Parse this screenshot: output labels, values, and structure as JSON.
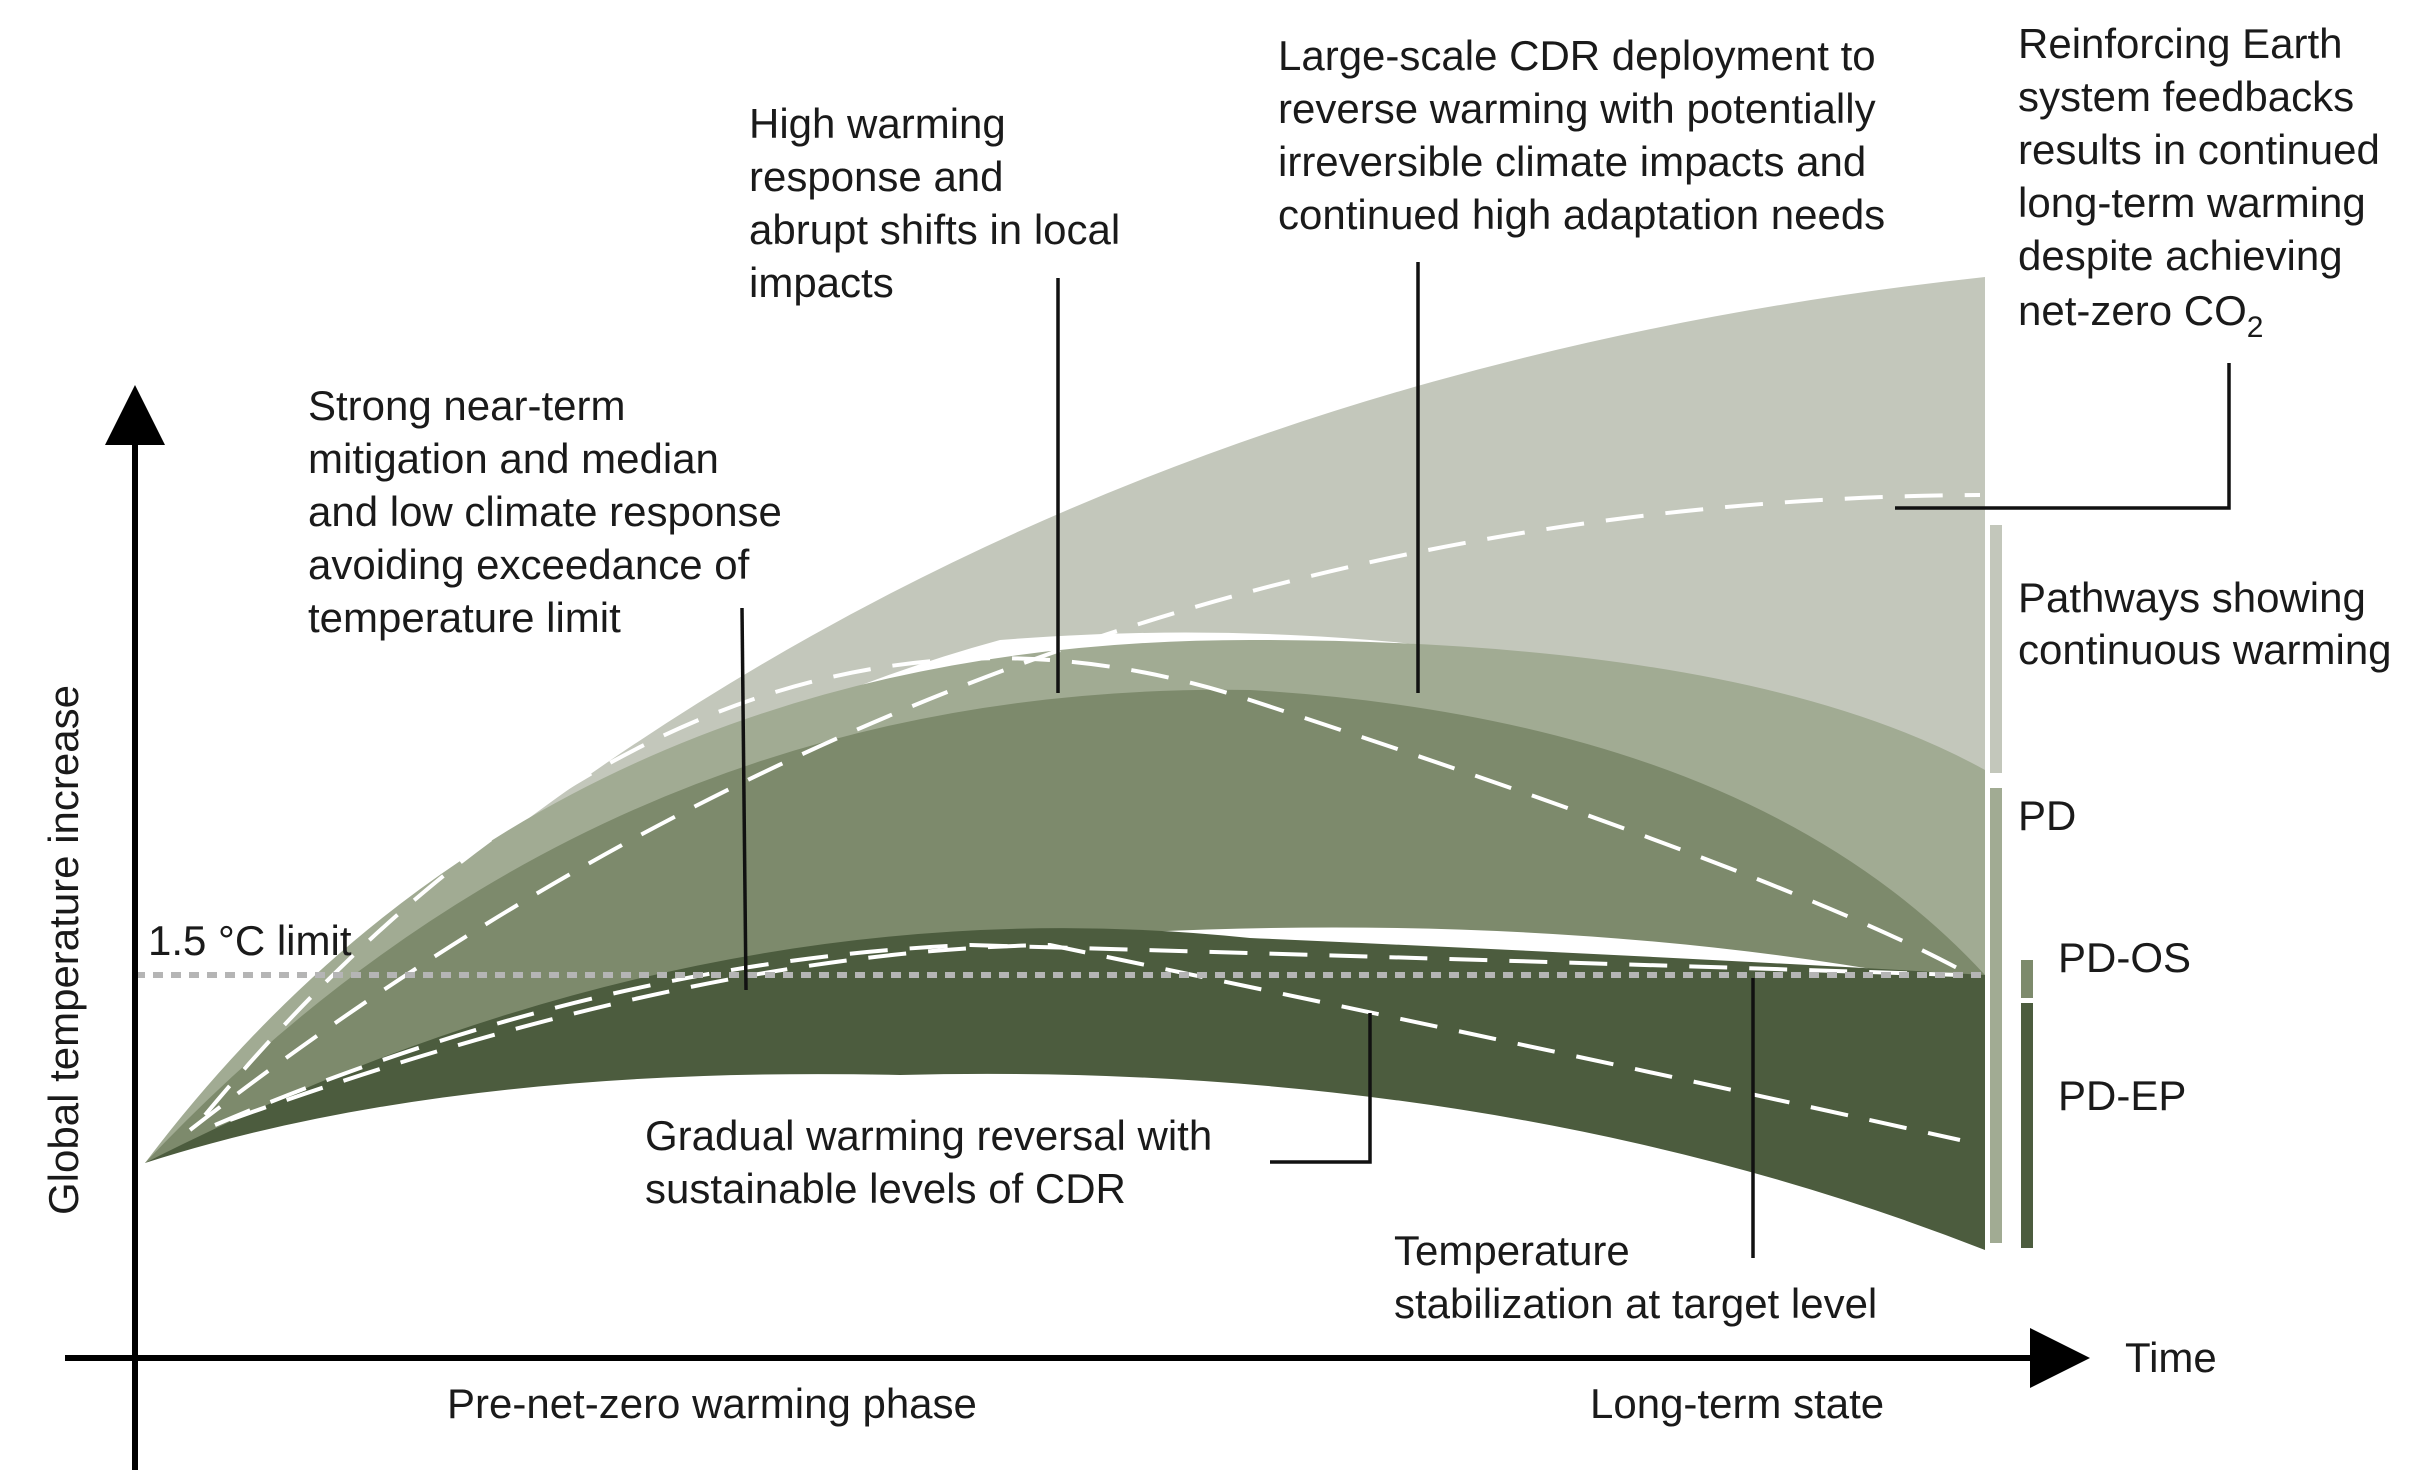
{
  "axes": {
    "y_label": "Global temperature increase",
    "x_label": "Time",
    "x_phase_left": "Pre-net-zero warming phase",
    "x_phase_right": "Long-term state"
  },
  "limit": {
    "label": "1.5 °C limit"
  },
  "annotations": {
    "strong_mitigation": [
      "Strong near-term",
      "mitigation and median",
      "and low climate response",
      "avoiding exceedance of",
      "temperature limit"
    ],
    "high_warming": [
      "High warming",
      "response and",
      "abrupt shifts in local",
      "impacts"
    ],
    "large_scale_cdr": [
      "Large-scale CDR deployment to",
      "reverse warming with potentially",
      "irreversible climate impacts and",
      "continued high adaptation needs"
    ],
    "reinforcing_feedbacks": [
      "Reinforcing Earth",
      "system feedbacks",
      "results in continued",
      "long-term warming",
      "despite achieving"
    ],
    "reinforcing_last": "net-zero CO",
    "reinforcing_sub": "2",
    "gradual_reversal": [
      "Gradual warming reversal with",
      "sustainable levels of CDR"
    ],
    "stabilization": [
      "Temperature",
      "stabilization at target level"
    ]
  },
  "categories": {
    "continuous": [
      "Pathways showing",
      "continuous warming"
    ],
    "pd": "PD",
    "pd_os": "PD-OS",
    "pd_ep": "PD-EP"
  },
  "colors": {
    "band_continuous": "#c3c7bb",
    "band_pd": "#a1ab93",
    "band_pd_os": "#7d8a6c",
    "band_pd_ep": "#4c5c3e",
    "dashed_line": "#ffffff",
    "limit_line": "#b5b5b5",
    "axis": "#000000"
  }
}
